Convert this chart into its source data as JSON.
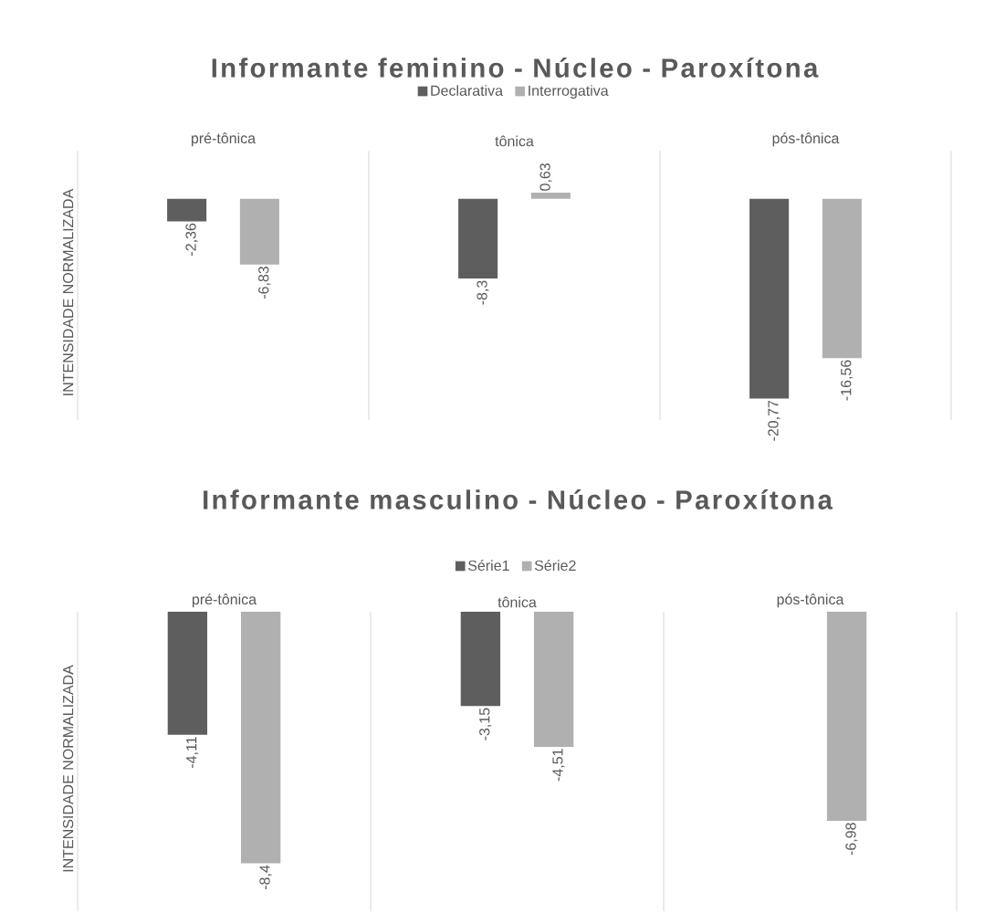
{
  "chart_data": [
    {
      "type": "bar",
      "title": "Informante feminino - Núcleo - Paroxítona",
      "ylabel": "INTENSIDADE NORMALIZADA",
      "categories": [
        "pré-tônica",
        "tônica",
        "pós-tônica"
      ],
      "series": [
        {
          "name": "Declarativa",
          "color": "#5e5e5e",
          "values": [
            -2.36,
            -8.3,
            -20.77
          ],
          "value_labels": [
            "-2,36",
            "-8,3",
            "-20,77"
          ]
        },
        {
          "name": "Interrogativa",
          "color": "#b0b0b0",
          "values": [
            -6.83,
            0.63,
            -16.56
          ],
          "value_labels": [
            "-6,83",
            "0,63",
            "-16,56"
          ]
        }
      ],
      "ylim": [
        -23,
        5
      ],
      "grid": "x",
      "legend": "top",
      "tick_labels": "x"
    },
    {
      "type": "bar",
      "title": "Informante masculino - Núcleo - Paroxítona",
      "ylabel": "INTENSIDADE NORMALIZADA",
      "categories": [
        "pré-tônica",
        "tônica",
        "pós-tônica"
      ],
      "series": [
        {
          "name": "Série1",
          "color": "#5e5e5e",
          "values": [
            -4.11,
            -3.15,
            null
          ],
          "value_labels": [
            "-4,11",
            "-3,15",
            null
          ]
        },
        {
          "name": "Série2",
          "color": "#b0b0b0",
          "values": [
            -8.4,
            -4.51,
            -6.98
          ],
          "value_labels": [
            "-8,4",
            "-4,51",
            "-6,98"
          ]
        }
      ],
      "ylim": [
        -10,
        0
      ],
      "grid": "x",
      "legend": "top",
      "tick_labels": "x"
    }
  ]
}
